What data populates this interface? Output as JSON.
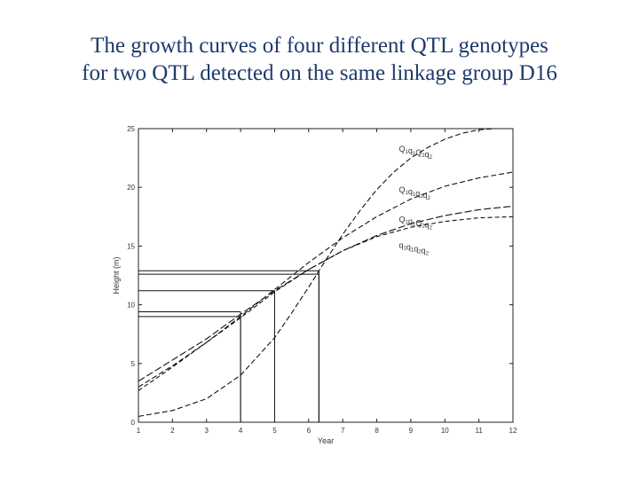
{
  "slide": {
    "title_line1": "The growth curves of four different QTL genotypes",
    "title_line2": "for two QTL detected on the same linkage group D16"
  },
  "chart_data": {
    "type": "line",
    "title": "",
    "xlabel": "Year",
    "ylabel": "Height (m)",
    "xlim": [
      1,
      12
    ],
    "ylim": [
      0,
      25
    ],
    "xticks": [
      1,
      2,
      3,
      4,
      5,
      6,
      7,
      8,
      9,
      10,
      11,
      12
    ],
    "yticks": [
      0,
      5,
      10,
      15,
      20,
      25
    ],
    "grid": false,
    "series": [
      {
        "name": "Q1q1Q2q2",
        "label_parts": [
          [
            "Q",
            "1"
          ],
          [
            "q",
            "1"
          ],
          [
            "Q",
            "2"
          ],
          [
            "q",
            "2"
          ]
        ],
        "label_at": [
          8.65,
          23.05
        ],
        "color": "#111111",
        "dash": "6,3",
        "x": [
          1,
          2,
          3,
          4,
          5,
          5.5,
          6,
          6.5,
          7,
          7.5,
          8,
          8.5,
          9,
          9.5,
          10,
          10.5,
          11,
          11.5,
          12
        ],
        "y": [
          0.5,
          1.0,
          2.0,
          4.0,
          7.2,
          9.3,
          11.5,
          13.8,
          16.0,
          18.0,
          19.8,
          21.3,
          22.5,
          23.4,
          24.1,
          24.6,
          24.9,
          25.0,
          25.0
        ]
      },
      {
        "name": "Q1q1q2q2",
        "label_parts": [
          [
            "Q",
            "1"
          ],
          [
            "q",
            "1"
          ],
          [
            "q",
            "2"
          ],
          [
            "q",
            "2"
          ]
        ],
        "label_at": [
          8.65,
          19.55
        ],
        "color": "#111111",
        "dash": "6,3",
        "x": [
          1,
          2,
          3,
          4,
          5,
          6,
          7,
          8,
          9,
          10,
          11,
          12
        ],
        "y": [
          3.0,
          4.8,
          6.8,
          9.0,
          11.3,
          13.6,
          15.7,
          17.5,
          19.0,
          20.1,
          20.8,
          21.3
        ]
      },
      {
        "name": "Q1q1Q2q2",
        "label_parts": [
          [
            "Q",
            "1"
          ],
          [
            "q",
            "1"
          ],
          [
            "Q",
            "2"
          ],
          [
            "q",
            "2"
          ]
        ],
        "label_at": [
          8.65,
          17.05
        ],
        "color": "#111111",
        "dash": "8,3",
        "x": [
          1,
          2,
          3,
          4,
          5,
          6,
          7,
          8,
          9,
          10,
          11,
          12
        ],
        "y": [
          3.5,
          5.3,
          7.1,
          9.2,
          11.2,
          13.0,
          14.6,
          15.9,
          16.9,
          17.6,
          18.1,
          18.4
        ]
      },
      {
        "name": "q1q1q2q2",
        "label_parts": [
          [
            "q",
            "1"
          ],
          [
            "q",
            "1"
          ],
          [
            "q",
            "2"
          ],
          [
            "q",
            "2"
          ]
        ],
        "label_at": [
          8.65,
          14.85
        ],
        "color": "#111111",
        "dash": "5,3",
        "x": [
          1,
          2,
          3,
          4,
          5,
          6,
          7,
          8,
          9,
          10,
          11,
          12
        ],
        "y": [
          2.7,
          4.7,
          6.8,
          8.9,
          11.1,
          13.0,
          14.6,
          15.8,
          16.6,
          17.1,
          17.4,
          17.5
        ]
      }
    ],
    "reference_lines": [
      {
        "x": 4.0,
        "y": 9.0
      },
      {
        "x": 4.0,
        "y": 9.4
      },
      {
        "x": 5.0,
        "y": 11.2
      },
      {
        "x": 6.3,
        "y": 12.9
      },
      {
        "x": 6.3,
        "y": 12.6
      }
    ]
  }
}
